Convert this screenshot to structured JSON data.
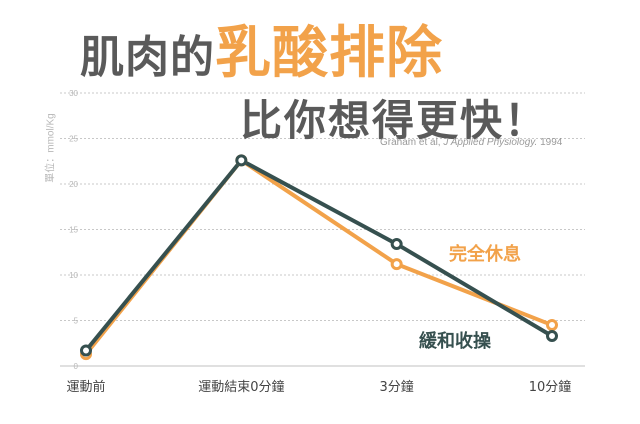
{
  "title_line1_prefix": "肌肉的",
  "title_line1_accent": "乳酸排除",
  "title_line2": "比你想得更快！",
  "citation_prefix": "Graham et al, ",
  "citation_journal": "J Applied Physiology.",
  "citation_year": " 1994",
  "colors": {
    "rest": "#f2a24a",
    "active": "#36504f",
    "grid": "#c8c8c8",
    "axis_text": "#b8b8b8",
    "title": "#5a5a5a"
  },
  "chart_data": {
    "type": "line",
    "ylabel": "單位：mmol/Kg",
    "ylim": [
      0,
      30
    ],
    "yticks": [
      0,
      5,
      10,
      15,
      20,
      25,
      30
    ],
    "categories": [
      "運動前",
      "運動結束0分鐘",
      "3分鐘",
      "10分鐘"
    ],
    "grid": true,
    "series": [
      {
        "name": "完全休息",
        "values": [
          1.3,
          22.6,
          11.2,
          4.5
        ]
      },
      {
        "name": "緩和收操",
        "values": [
          1.7,
          22.6,
          13.4,
          3.3
        ]
      }
    ]
  }
}
